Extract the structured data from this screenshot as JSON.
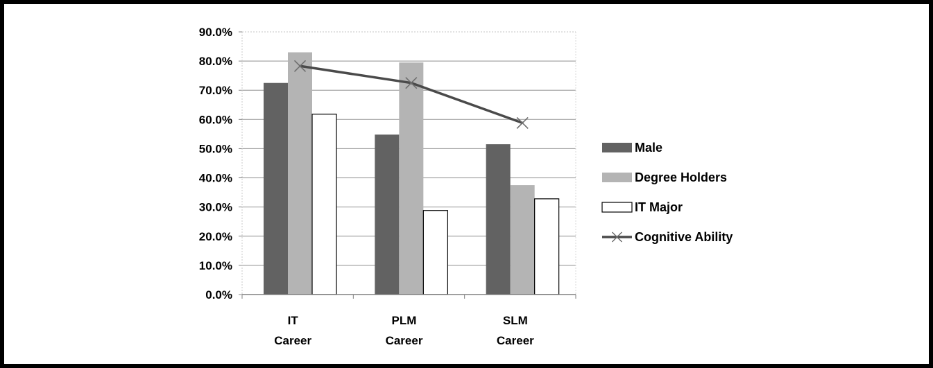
{
  "chart_data": {
    "type": "bar",
    "categories": [
      [
        "IT",
        "Career"
      ],
      [
        "PLM",
        "Career"
      ],
      [
        "SLM",
        "Career"
      ]
    ],
    "series": [
      {
        "name": "Male",
        "kind": "bar",
        "values": [
          72.5,
          54.8,
          51.5
        ],
        "color": "#626262"
      },
      {
        "name": "Degree Holders",
        "kind": "bar",
        "values": [
          83.0,
          79.5,
          37.5
        ],
        "color": "#b4b4b4"
      },
      {
        "name": "IT Major",
        "kind": "bar",
        "values": [
          61.8,
          28.8,
          32.8
        ],
        "color": "#ffffff"
      },
      {
        "name": "Cognitive Ability",
        "kind": "line",
        "values": [
          78.3,
          72.5,
          58.8
        ],
        "color": "#4a4a4a"
      }
    ],
    "yticks": [
      "0.0%",
      "10.0%",
      "20.0%",
      "30.0%",
      "40.0%",
      "50.0%",
      "60.0%",
      "70.0%",
      "80.0%",
      "90.0%"
    ],
    "ylim": [
      0,
      90
    ],
    "grid": true,
    "legend_position": "right"
  }
}
